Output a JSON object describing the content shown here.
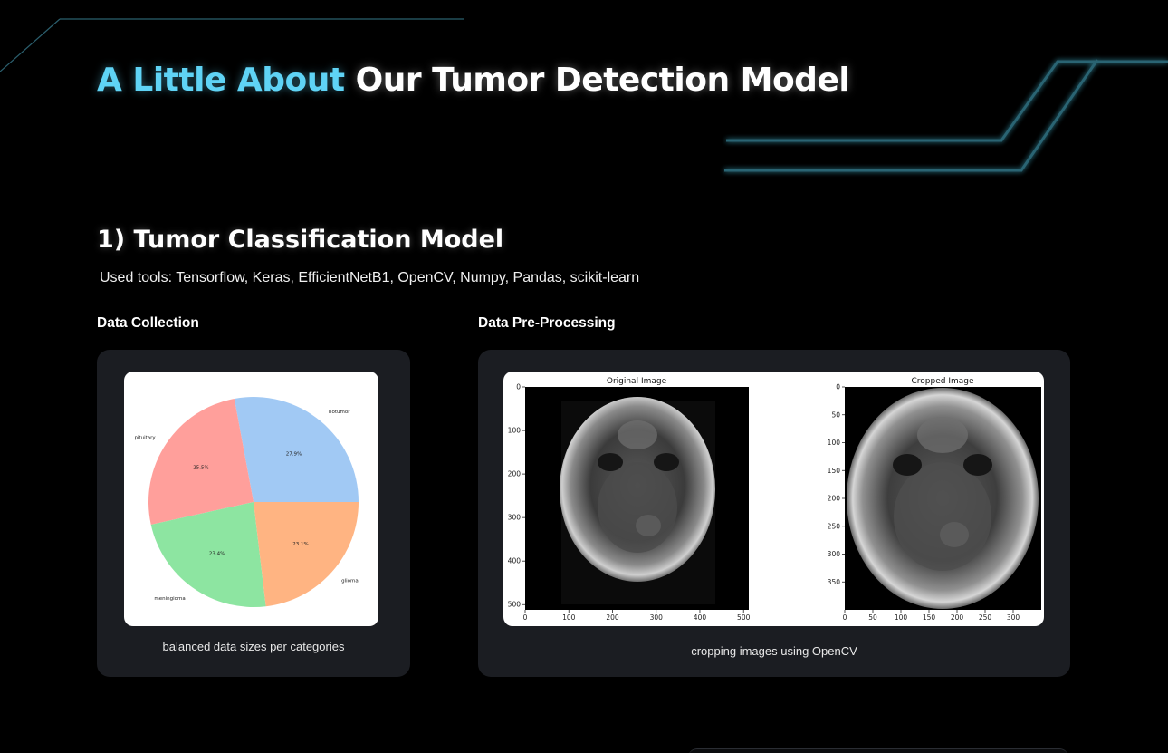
{
  "hero": {
    "title_accent": "A Little About",
    "title_rest": "Our Tumor Detection Model"
  },
  "section": {
    "title": "1) Tumor Classification Model",
    "tools": "Used tools: Tensorflow, Keras, EfficientNetB1, OpenCV, Numpy, Pandas, scikit-learn"
  },
  "data_collection": {
    "label": "Data Collection",
    "caption": "balanced data sizes per categories"
  },
  "preprocessing": {
    "label": "Data Pre-Processing",
    "caption": "cropping images using OpenCV",
    "original_title": "Original Image",
    "cropped_title": "Cropped Image",
    "original_yticks": [
      "0",
      "100",
      "200",
      "300",
      "400",
      "500"
    ],
    "original_xticks": [
      "0",
      "100",
      "200",
      "300",
      "400",
      "500"
    ],
    "cropped_yticks": [
      "0",
      "50",
      "100",
      "150",
      "200",
      "250",
      "300",
      "350"
    ],
    "cropped_xticks": [
      "0",
      "50",
      "100",
      "150",
      "200",
      "250",
      "300"
    ]
  },
  "colors": {
    "accent": "#5fd3f5",
    "card_bg": "#1b1d22",
    "deco_line": "#2b5f6e"
  },
  "chart_data": {
    "type": "pie",
    "categories": [
      "notumor",
      "pituitary",
      "meningioma",
      "glioma"
    ],
    "values": [
      27.9,
      25.5,
      23.4,
      23.1
    ],
    "value_labels": [
      "27.9%",
      "25.5%",
      "23.4%",
      "23.1%"
    ],
    "colors": [
      "#a1c9f4",
      "#ff9f9b",
      "#8de5a1",
      "#ffb482"
    ],
    "start_angle_deg": 0,
    "direction": "counterclockwise"
  }
}
